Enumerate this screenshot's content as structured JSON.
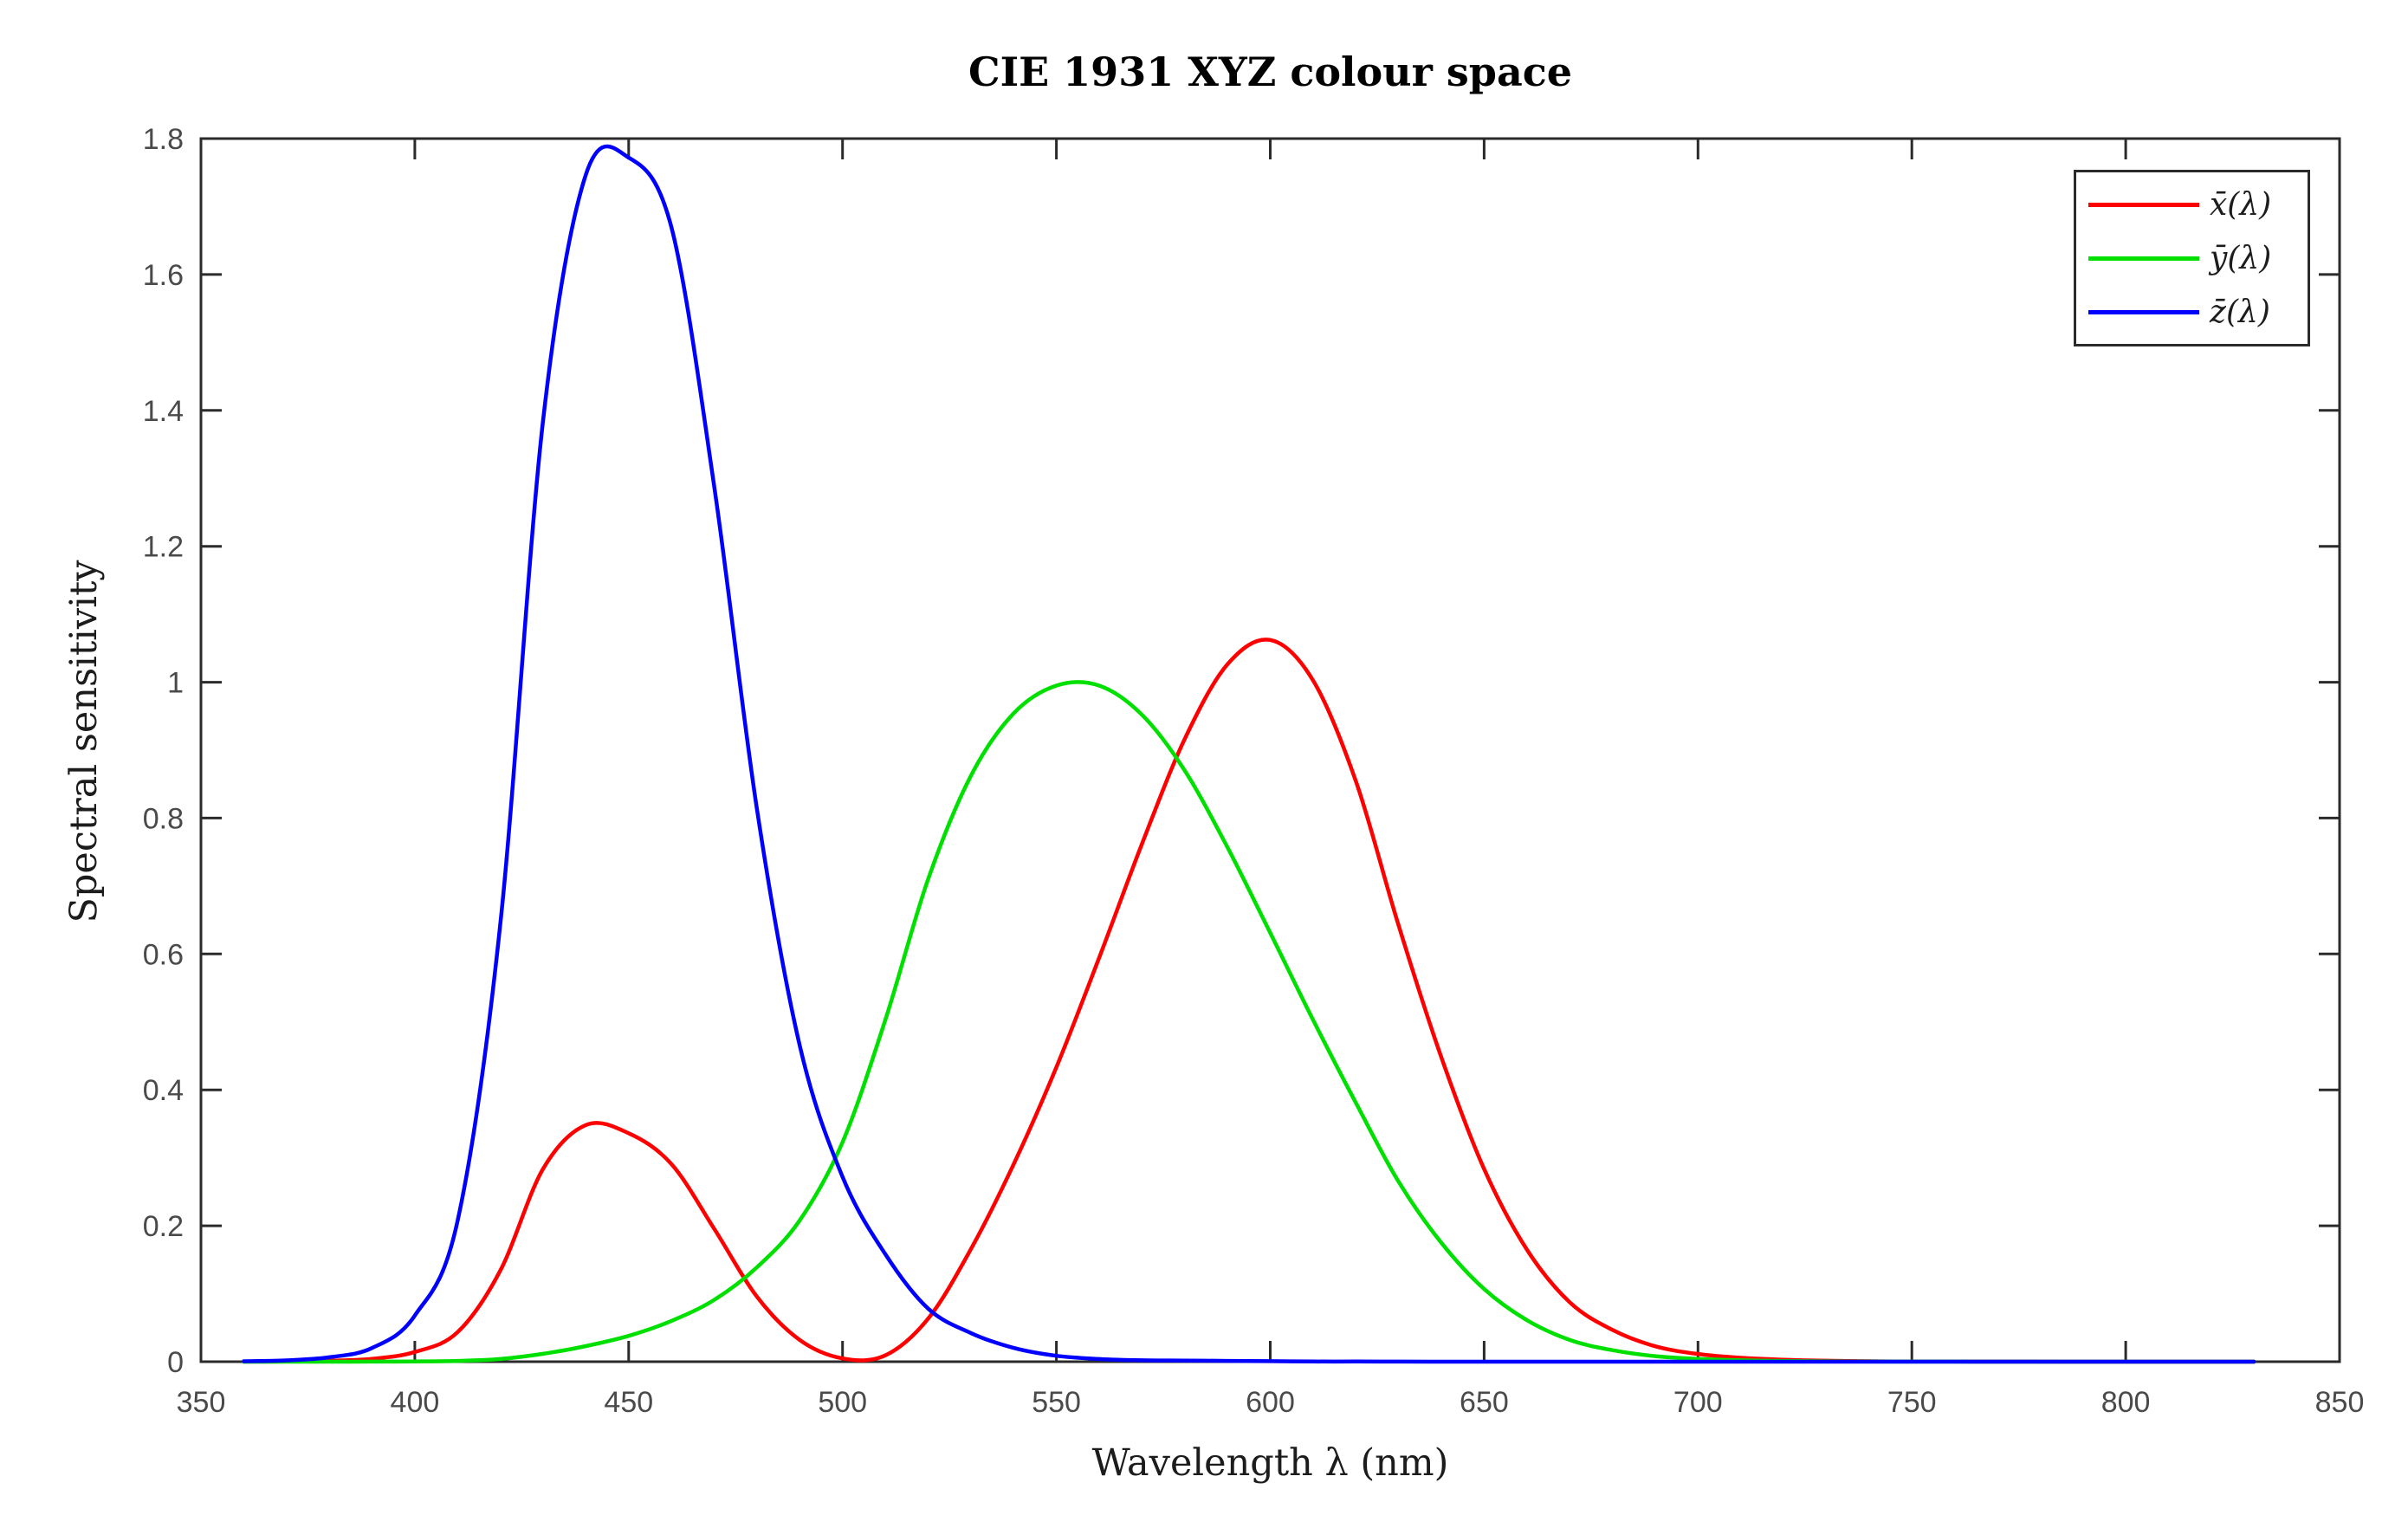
{
  "figure": {
    "title": "CIE 1931 XYZ colour space",
    "xlabel": "Wavelength λ (nm)",
    "ylabel": "Spectral sensitivity"
  },
  "legend": {
    "position": "top-right",
    "items": [
      {
        "label": "x̄(λ)"
      },
      {
        "label": "ȳ(λ)"
      },
      {
        "label": "z̄(λ)"
      }
    ]
  },
  "colors": {
    "background": "#ffffff",
    "axis": "#2b2b2b",
    "tick_label": "#4a4a4a",
    "series_red": "#ff0000",
    "series_green": "#00e000",
    "series_blue": "#0000ff"
  },
  "chart_data": {
    "type": "line",
    "title": "CIE 1931 XYZ colour space",
    "xlabel": "Wavelength λ (nm)",
    "ylabel": "Spectral sensitivity",
    "xlim": [
      350,
      850
    ],
    "ylim": [
      0,
      1.8
    ],
    "grid": false,
    "legend_position": "top-right",
    "xticks": [
      350,
      400,
      450,
      500,
      550,
      600,
      650,
      700,
      750,
      800,
      850
    ],
    "xtick_labels": [
      "350",
      "400",
      "450",
      "500",
      "550",
      "600",
      "650",
      "700",
      "750",
      "800",
      "850"
    ],
    "yticks": [
      0,
      0.2,
      0.4,
      0.6,
      0.8,
      1,
      1.2,
      1.4,
      1.6,
      1.8
    ],
    "ytick_labels": [
      "0",
      "0.2",
      "0.4",
      "0.6",
      "0.8",
      "1",
      "1.2",
      "1.4",
      "1.6",
      "1.8"
    ],
    "x": [
      360,
      370,
      380,
      390,
      400,
      410,
      420,
      430,
      440,
      450,
      460,
      470,
      480,
      490,
      500,
      510,
      520,
      530,
      540,
      550,
      560,
      570,
      580,
      590,
      600,
      610,
      620,
      630,
      640,
      650,
      660,
      670,
      680,
      690,
      700,
      710,
      720,
      730,
      740,
      750,
      760,
      770,
      780,
      790,
      800,
      810,
      820,
      830
    ],
    "series": [
      {
        "id": "xbar",
        "name": "x̄(λ)",
        "color": "#ff0000",
        "values": [
          0.0001,
          0.0004,
          0.0014,
          0.0042,
          0.0143,
          0.0435,
          0.1344,
          0.2839,
          0.3483,
          0.3362,
          0.2908,
          0.1954,
          0.0956,
          0.032,
          0.0049,
          0.0093,
          0.0633,
          0.1655,
          0.2904,
          0.4334,
          0.5945,
          0.7621,
          0.9163,
          1.0263,
          1.0622,
          1.0026,
          0.8544,
          0.6424,
          0.4479,
          0.2835,
          0.1649,
          0.0874,
          0.0468,
          0.0227,
          0.0114,
          0.0058,
          0.0029,
          0.0014,
          0.0007,
          0.0003,
          0.0002,
          0.0001,
          0.0001,
          0,
          0,
          0,
          0,
          0
        ]
      },
      {
        "id": "ybar",
        "name": "ȳ(λ)",
        "color": "#00e000",
        "values": [
          0,
          0,
          0,
          0.0001,
          0.0004,
          0.0012,
          0.004,
          0.0116,
          0.023,
          0.038,
          0.06,
          0.091,
          0.139,
          0.208,
          0.323,
          0.503,
          0.71,
          0.862,
          0.954,
          0.995,
          0.995,
          0.952,
          0.87,
          0.757,
          0.631,
          0.503,
          0.381,
          0.265,
          0.175,
          0.107,
          0.061,
          0.032,
          0.017,
          0.0082,
          0.0041,
          0.0021,
          0.001,
          0.0005,
          0.0002,
          0.0001,
          0.0001,
          0,
          0,
          0,
          0,
          0,
          0,
          0
        ]
      },
      {
        "id": "zbar",
        "name": "z̄(λ)",
        "color": "#0000ff",
        "values": [
          0.0006,
          0.0019,
          0.0065,
          0.0201,
          0.0679,
          0.2074,
          0.6456,
          1.3856,
          1.7471,
          1.7721,
          1.6692,
          1.2876,
          0.813,
          0.4652,
          0.272,
          0.1582,
          0.0782,
          0.0422,
          0.0203,
          0.0087,
          0.0039,
          0.0021,
          0.0017,
          0.0011,
          0.0008,
          0.0003,
          0.0002,
          0.0001,
          0,
          0,
          0,
          0,
          0,
          0,
          0,
          0,
          0,
          0,
          0,
          0,
          0,
          0,
          0,
          0,
          0,
          0,
          0,
          0
        ]
      }
    ]
  }
}
